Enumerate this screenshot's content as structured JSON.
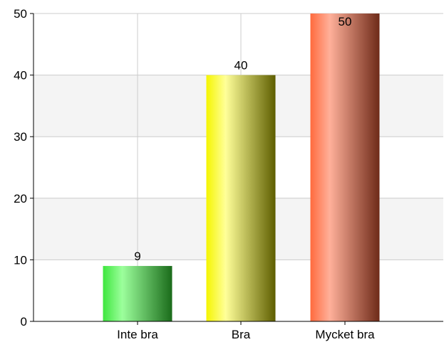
{
  "chart_data": {
    "type": "bar",
    "title": "",
    "xlabel": "",
    "ylabel": "",
    "categories": [
      "Inte bra",
      "Bra",
      "Mycket bra"
    ],
    "values": [
      9,
      40,
      50
    ],
    "data_labels": [
      "9",
      "40",
      "50"
    ],
    "ylim": [
      0,
      50
    ],
    "yticks": [
      0,
      10,
      20,
      30,
      40,
      50
    ],
    "grid": true,
    "legend": "none",
    "bar_colors": [
      {
        "light": "#9cff9c",
        "mid": "#3ee63e",
        "dark": "#1a6b1a"
      },
      {
        "light": "#ffff99",
        "mid": "#f5f500",
        "dark": "#5e5e00"
      },
      {
        "light": "#ffb09a",
        "mid": "#ff6a3d",
        "dark": "#6e2a18"
      }
    ]
  }
}
